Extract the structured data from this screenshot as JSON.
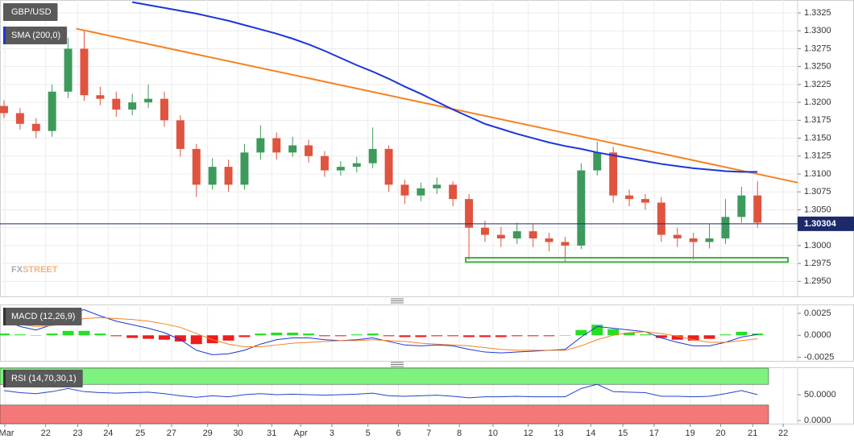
{
  "chart_data": [
    {
      "type": "candlestick",
      "title": "GBP/USD",
      "watermark": {
        "dark": "FX",
        "accent": "STREET"
      },
      "xlim": [
        -0.25,
        49.5
      ],
      "ylim": [
        1.2929,
        1.3343
      ],
      "yticks": [
        1.3325,
        {
          "value": 1.33,
          "label": "1.3300"
        },
        1.3275,
        {
          "value": 1.325,
          "label": "1.3250"
        },
        1.3225,
        {
          "value": 1.32,
          "label": "1.3200"
        },
        1.3175,
        {
          "value": 1.315,
          "label": "1.3150"
        },
        1.3125,
        {
          "value": 1.31,
          "label": "1.3100"
        },
        1.3075,
        {
          "value": 1.305,
          "label": "1.3050"
        },
        1.3025,
        {
          "value": 1.3,
          "label": "1.3000"
        },
        1.2975,
        {
          "value": 1.295,
          "label": "1.2950"
        }
      ],
      "grid": true,
      "up_color": "#3d9a5c",
      "down_color": "#e0533f",
      "open": [
        1.3195,
        1.3185,
        1.317,
        1.316,
        1.3215,
        1.3275,
        1.321,
        1.3205,
        1.319,
        1.32,
        1.3205,
        1.3175,
        1.3135,
        1.3085,
        1.311,
        1.3085,
        1.313,
        1.315,
        1.313,
        1.314,
        1.3125,
        1.3105,
        1.311,
        1.3115,
        1.3135,
        1.3085,
        1.307,
        1.308,
        1.3085,
        1.3065,
        1.3025,
        1.3015,
        1.301,
        1.302,
        1.301,
        1.3005,
        1.3,
        1.3105,
        1.313,
        1.307,
        1.3065,
        1.306,
        1.3015,
        1.301,
        1.3005,
        1.301,
        1.304,
        1.307
      ],
      "high": [
        1.3203,
        1.3192,
        1.3178,
        1.3225,
        1.329,
        1.33,
        1.3222,
        1.3215,
        1.3212,
        1.3225,
        1.3215,
        1.3182,
        1.3142,
        1.3122,
        1.312,
        1.3142,
        1.3168,
        1.3158,
        1.3152,
        1.3148,
        1.3132,
        1.3118,
        1.3124,
        1.3165,
        1.314,
        1.3092,
        1.3088,
        1.3095,
        1.309,
        1.3072,
        1.3035,
        1.3026,
        1.3032,
        1.303,
        1.3018,
        1.3012,
        1.3115,
        1.3145,
        1.3138,
        1.3078,
        1.3072,
        1.3068,
        1.3025,
        1.3018,
        1.303,
        1.3065,
        1.3082,
        1.309
      ],
      "low": [
        1.3178,
        1.3162,
        1.315,
        1.3152,
        1.3206,
        1.3202,
        1.3196,
        1.318,
        1.3182,
        1.3192,
        1.3166,
        1.3124,
        1.3068,
        1.3078,
        1.3075,
        1.3078,
        1.312,
        1.312,
        1.3124,
        1.3116,
        1.3096,
        1.3098,
        1.3102,
        1.3108,
        1.3075,
        1.3058,
        1.3062,
        1.3072,
        1.3055,
        1.298,
        1.3005,
        1.2998,
        1.3002,
        1.2998,
        1.2992,
        1.2978,
        1.2995,
        1.3098,
        1.306,
        1.3055,
        1.305,
        1.3005,
        1.2998,
        1.298,
        1.2996,
        1.3002,
        1.3032,
        1.3025
      ],
      "close": [
        1.3185,
        1.317,
        1.316,
        1.3215,
        1.3275,
        1.321,
        1.3205,
        1.319,
        1.32,
        1.3205,
        1.3175,
        1.3135,
        1.3085,
        1.311,
        1.3085,
        1.313,
        1.315,
        1.313,
        1.314,
        1.3125,
        1.3105,
        1.311,
        1.3115,
        1.3135,
        1.3085,
        1.307,
        1.308,
        1.3085,
        1.3065,
        1.3025,
        1.3015,
        1.301,
        1.302,
        1.301,
        1.3005,
        1.3,
        1.3105,
        1.313,
        1.307,
        1.3065,
        1.306,
        1.3015,
        1.301,
        1.3005,
        1.301,
        1.304,
        1.307,
        1.3032
      ],
      "series": [
        {
          "name": "SMA (200,0)",
          "color": "#1a36d8",
          "values": [
            null,
            null,
            null,
            null,
            null,
            null,
            null,
            null,
            1.334,
            1.3336,
            1.3332,
            1.3328,
            1.3324,
            1.3319,
            1.3314,
            1.3308,
            1.3302,
            1.3296,
            1.3289,
            1.3281,
            1.3272,
            1.3262,
            1.3252,
            1.3243,
            1.3233,
            1.3222,
            1.3212,
            1.3201,
            1.319,
            1.318,
            1.317,
            1.3163,
            1.3156,
            1.315,
            1.3144,
            1.3139,
            1.3135,
            1.313,
            1.3126,
            1.3122,
            1.3118,
            1.3114,
            1.3111,
            1.3108,
            1.3106,
            1.3104,
            1.3103,
            1.3103
          ]
        }
      ],
      "trendline": {
        "color": "#f58220",
        "x": [
          4.5,
          49.5
        ],
        "values": [
          1.3303,
          1.3088
        ]
      },
      "support_zone": {
        "color": "#3cb043",
        "x": [
          28.8,
          48.9
        ],
        "values": [
          1.2977,
          1.2983
        ]
      },
      "last_price": 1.30304,
      "last_price_color": "#1c2a6b"
    },
    {
      "type": "macd",
      "title": "MACD (12,26,9)",
      "xlim": [
        -0.25,
        49.5
      ],
      "ylim": [
        -0.0029,
        0.0035
      ],
      "yticks": [
        0.0025,
        {
          "value": 0,
          "label": "0.0000"
        },
        -0.0025
      ],
      "histogram": {
        "up_color": "#22e022",
        "down_color": "#ee1c1c",
        "values": [
          0.0002,
          0.0001,
          0.0,
          0.0002,
          0.0005,
          0.0005,
          0.0002,
          -0.0001,
          -0.0003,
          -0.0004,
          -0.0005,
          -0.0007,
          -0.001,
          -0.0009,
          -0.0006,
          -0.0002,
          0.0002,
          0.0003,
          0.0003,
          0.0002,
          -0.0001,
          -0.0001,
          0.0001,
          0.0002,
          -0.0001,
          -0.0002,
          -0.0002,
          -0.0001,
          -0.0001,
          -0.0002,
          -0.0002,
          -0.0002,
          -0.0001,
          -0.0001,
          -0.0001,
          0.0,
          0.0006,
          0.0012,
          0.0007,
          0.0003,
          0.0001,
          -0.0003,
          -0.0005,
          -0.0006,
          -0.0004,
          0.0001,
          0.0004,
          0.0002
        ]
      },
      "series": [
        {
          "color": "#1a36d8",
          "values": [
            0.0017,
            0.001,
            0.0006,
            0.0012,
            0.0026,
            0.0029,
            0.0022,
            0.0016,
            0.0012,
            0.0008,
            0.0003,
            -0.0005,
            -0.0017,
            -0.0022,
            -0.0021,
            -0.0017,
            -0.001,
            -0.0005,
            -0.0003,
            -0.0003,
            -0.0005,
            -0.0006,
            -0.0005,
            -0.0003,
            -0.0007,
            -0.0011,
            -0.0012,
            -0.0011,
            -0.0012,
            -0.0016,
            -0.0019,
            -0.002,
            -0.0019,
            -0.0018,
            -0.0017,
            -0.0016,
            -0.0002,
            0.001,
            0.0008,
            0.0006,
            0.0004,
            -0.0003,
            -0.0008,
            -0.0012,
            -0.0012,
            -0.0008,
            -0.0002,
            0.0001
          ]
        },
        {
          "color": "#f58220",
          "values": [
            0.0012,
            0.0012,
            0.001,
            0.0011,
            0.0015,
            0.0019,
            0.002,
            0.0019,
            0.0018,
            0.0016,
            0.0013,
            0.0009,
            0.0002,
            -0.0005,
            -0.001,
            -0.0013,
            -0.0013,
            -0.0011,
            -0.0009,
            -0.0008,
            -0.0007,
            -0.0006,
            -0.0006,
            -0.0005,
            -0.0006,
            -0.0007,
            -0.0009,
            -0.001,
            -0.0011,
            -0.0012,
            -0.0014,
            -0.0016,
            -0.0017,
            -0.0017,
            -0.0017,
            -0.0017,
            -0.0012,
            -0.0005,
            0.0,
            0.0003,
            0.0004,
            0.0002,
            -0.0001,
            -0.0005,
            -0.0008,
            -0.0008,
            -0.0006,
            -0.0004
          ]
        }
      ]
    },
    {
      "type": "rsi",
      "title": "RSI (14,70,30,1)",
      "xlim": [
        -0.25,
        49.5
      ],
      "ylim": [
        -6,
        103
      ],
      "yticks": [
        {
          "value": 50,
          "label": "50.0000"
        },
        {
          "value": 0,
          "label": "0.0000"
        }
      ],
      "upper": 70,
      "lower": 30,
      "upper_color": "#7ef27e",
      "lower_color": "#f47878",
      "series": [
        {
          "color": "#2244cc",
          "values": [
            58,
            54,
            52,
            56,
            62,
            56,
            54,
            53,
            54,
            55,
            52,
            48,
            45,
            48,
            46,
            50,
            52,
            50,
            51,
            50,
            49,
            50,
            51,
            53,
            48,
            47,
            48,
            49,
            47,
            44,
            46,
            46,
            47,
            46,
            46,
            46,
            62,
            70,
            56,
            55,
            54,
            47,
            47,
            46,
            47,
            52,
            58,
            50
          ]
        }
      ],
      "xticks": [
        {
          "value": 0.05,
          "label": "Mar"
        },
        {
          "value": 2.6,
          "label": "22"
        },
        {
          "value": 4.6,
          "label": "23"
        },
        {
          "value": 6.5,
          "label": "24"
        },
        {
          "value": 8.5,
          "label": "25"
        },
        {
          "value": 10.45,
          "label": "27"
        },
        {
          "value": 12.7,
          "label": "29"
        },
        {
          "value": 14.6,
          "label": "30"
        },
        {
          "value": 16.7,
          "label": "31"
        },
        {
          "value": 18.5,
          "label": "Apr"
        },
        {
          "value": 20.45,
          "label": "3"
        },
        {
          "value": 22.7,
          "label": "5"
        },
        {
          "value": 24.6,
          "label": "6"
        },
        {
          "value": 26.5,
          "label": "7"
        },
        {
          "value": 28.4,
          "label": "8"
        },
        {
          "value": 30.5,
          "label": "10"
        },
        {
          "value": 32.7,
          "label": "12"
        },
        {
          "value": 34.6,
          "label": "13"
        },
        {
          "value": 36.6,
          "label": "14"
        },
        {
          "value": 38.6,
          "label": "15"
        },
        {
          "value": 40.55,
          "label": "17"
        },
        {
          "value": 42.8,
          "label": "19"
        },
        {
          "value": 44.7,
          "label": "20"
        },
        {
          "value": 46.7,
          "label": "21"
        },
        {
          "value": 48.6,
          "label": "22"
        }
      ]
    }
  ]
}
